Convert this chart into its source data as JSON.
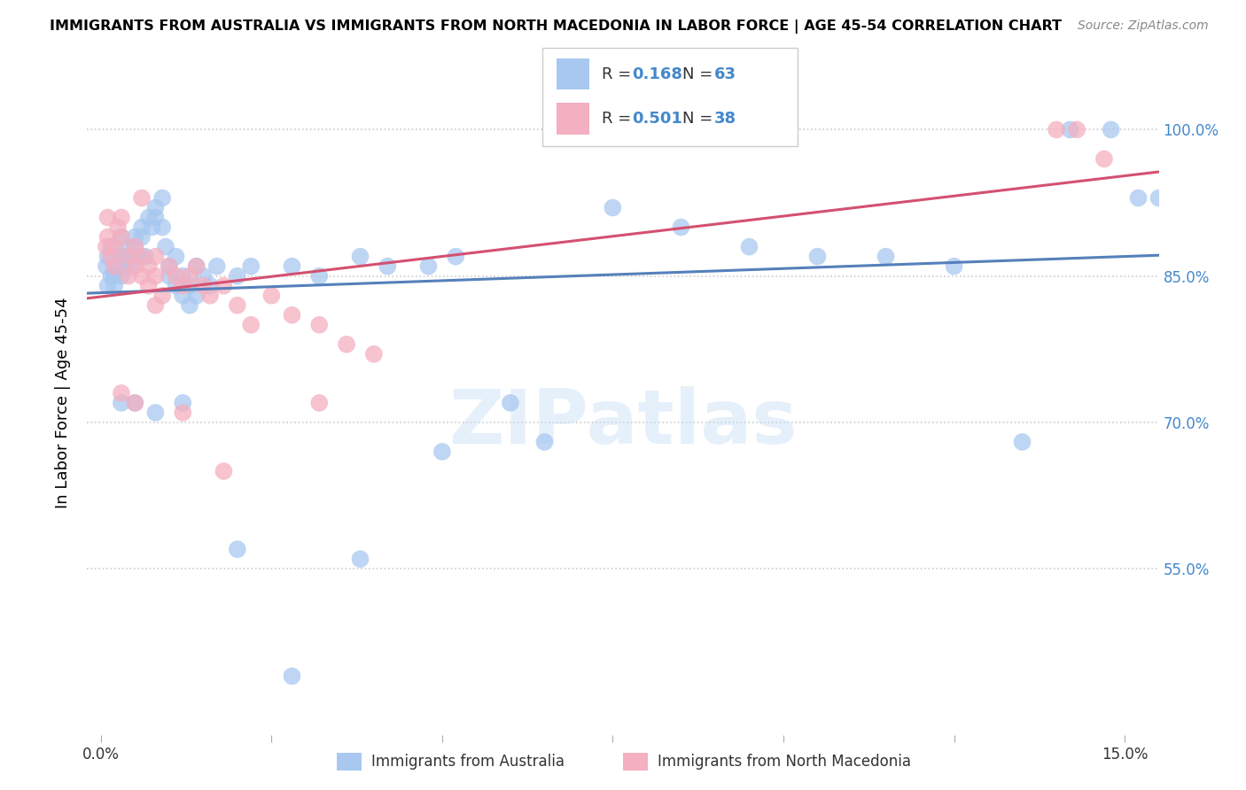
{
  "title": "IMMIGRANTS FROM AUSTRALIA VS IMMIGRANTS FROM NORTH MACEDONIA IN LABOR FORCE | AGE 45-54 CORRELATION CHART",
  "source": "Source: ZipAtlas.com",
  "ylabel": "In Labor Force | Age 45-54",
  "legend_r1": "0.168",
  "legend_n1": "63",
  "legend_r2": "0.501",
  "legend_n2": "38",
  "color_australia": "#a8c8f0",
  "color_macedonia": "#f4afc0",
  "color_line_australia": "#5580bb",
  "color_line_macedonia": "#d45070",
  "color_r_value": "#4488cc",
  "color_grid": "#cccccc",
  "color_ytick": "#4488cc",
  "watermark": "ZIPatlas",
  "xlim": [
    -0.002,
    0.155
  ],
  "ylim": [
    0.38,
    1.06
  ],
  "ytick_positions": [
    0.55,
    0.7,
    0.85,
    1.0
  ],
  "ytick_labels": [
    "55.0%",
    "70.0%",
    "85.0%",
    "100.0%"
  ],
  "xtick_show": [
    "0.0%",
    "15.0%"
  ],
  "aus_x": [
    0.0008,
    0.001,
    0.001,
    0.0015,
    0.0015,
    0.002,
    0.002,
    0.002,
    0.0025,
    0.003,
    0.003,
    0.003,
    0.0035,
    0.004,
    0.004,
    0.0045,
    0.005,
    0.005,
    0.0055,
    0.006,
    0.006,
    0.0065,
    0.007,
    0.0075,
    0.008,
    0.008,
    0.009,
    0.009,
    0.0095,
    0.01,
    0.01,
    0.011,
    0.011,
    0.012,
    0.012,
    0.013,
    0.013,
    0.014,
    0.014,
    0.015,
    0.016,
    0.017,
    0.02,
    0.022,
    0.028,
    0.032,
    0.038,
    0.042,
    0.048,
    0.052,
    0.06,
    0.065,
    0.075,
    0.085,
    0.095,
    0.105,
    0.115,
    0.125,
    0.135,
    0.142,
    0.148,
    0.152,
    0.155
  ],
  "aus_y": [
    0.86,
    0.87,
    0.84,
    0.88,
    0.85,
    0.86,
    0.85,
    0.84,
    0.87,
    0.89,
    0.87,
    0.85,
    0.86,
    0.88,
    0.87,
    0.86,
    0.89,
    0.88,
    0.87,
    0.9,
    0.89,
    0.87,
    0.91,
    0.9,
    0.92,
    0.91,
    0.93,
    0.9,
    0.88,
    0.86,
    0.85,
    0.87,
    0.84,
    0.85,
    0.83,
    0.84,
    0.82,
    0.86,
    0.83,
    0.85,
    0.84,
    0.86,
    0.85,
    0.86,
    0.86,
    0.85,
    0.87,
    0.86,
    0.86,
    0.87,
    0.72,
    0.68,
    0.92,
    0.9,
    0.88,
    0.87,
    0.87,
    0.86,
    0.68,
    1.0,
    1.0,
    0.93,
    0.93
  ],
  "aus_outliers_x": [
    0.003,
    0.005,
    0.008,
    0.012,
    0.02,
    0.028,
    0.038,
    0.05
  ],
  "aus_outliers_y": [
    0.72,
    0.72,
    0.71,
    0.72,
    0.57,
    0.44,
    0.56,
    0.67
  ],
  "mac_x": [
    0.0008,
    0.001,
    0.001,
    0.0015,
    0.002,
    0.002,
    0.0025,
    0.003,
    0.003,
    0.004,
    0.004,
    0.005,
    0.005,
    0.006,
    0.006,
    0.007,
    0.007,
    0.008,
    0.008,
    0.009,
    0.01,
    0.011,
    0.012,
    0.013,
    0.014,
    0.015,
    0.016,
    0.018,
    0.02,
    0.022,
    0.025,
    0.028,
    0.032,
    0.036,
    0.04,
    0.14,
    0.143,
    0.147
  ],
  "mac_y": [
    0.88,
    0.91,
    0.89,
    0.87,
    0.88,
    0.86,
    0.9,
    0.91,
    0.89,
    0.87,
    0.85,
    0.88,
    0.86,
    0.87,
    0.85,
    0.86,
    0.84,
    0.87,
    0.85,
    0.83,
    0.86,
    0.85,
    0.84,
    0.85,
    0.86,
    0.84,
    0.83,
    0.84,
    0.82,
    0.8,
    0.83,
    0.81,
    0.8,
    0.78,
    0.77,
    1.0,
    1.0,
    0.97
  ],
  "mac_outliers_x": [
    0.003,
    0.005,
    0.006,
    0.008,
    0.012,
    0.018,
    0.032
  ],
  "mac_outliers_y": [
    0.73,
    0.72,
    0.93,
    0.82,
    0.71,
    0.65,
    0.72
  ]
}
